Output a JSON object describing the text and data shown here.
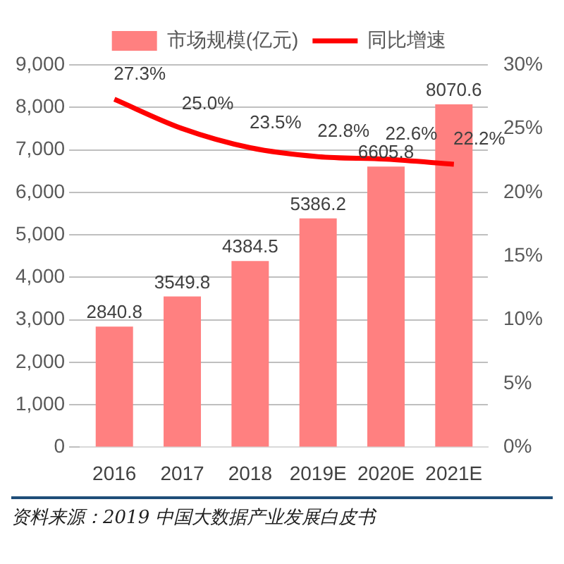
{
  "chart_data": {
    "type": "bar",
    "categories": [
      "2016",
      "2017",
      "2018",
      "2019E",
      "2020E",
      "2021E"
    ],
    "series": [
      {
        "name": "市场规模(亿元)",
        "color": "#ff8080",
        "values": [
          2840.8,
          3549.8,
          4384.5,
          5386.2,
          6605.8,
          8070.6
        ],
        "value_labels": [
          "2840.8",
          "3549.8",
          "4384.5",
          "5386.2",
          "6605.8",
          "8070.6"
        ]
      },
      {
        "name": "同比增速",
        "type": "line",
        "axis": "y2",
        "color": "#ff0000",
        "values": [
          27.3,
          25.0,
          23.5,
          22.8,
          22.6,
          22.2
        ],
        "value_labels": [
          "27.3%",
          "25.0%",
          "23.5%",
          "22.8%",
          "22.6%",
          "22.2%"
        ]
      }
    ],
    "ylim": [
      0,
      9000
    ],
    "yticks": [
      {
        "value": 0,
        "label": "0"
      },
      {
        "value": 1000,
        "label": "1,000"
      },
      {
        "value": 2000,
        "label": "2,000"
      },
      {
        "value": 3000,
        "label": "3,000"
      },
      {
        "value": 4000,
        "label": "4,000"
      },
      {
        "value": 5000,
        "label": "5,000"
      },
      {
        "value": 6000,
        "label": "6,000"
      },
      {
        "value": 7000,
        "label": "7,000"
      },
      {
        "value": 8000,
        "label": "8,000"
      },
      {
        "value": 9000,
        "label": "9,000"
      }
    ],
    "y2lim": [
      0,
      30
    ],
    "y2ticks": [
      {
        "value": 0,
        "label": "0%"
      },
      {
        "value": 5,
        "label": "5%"
      },
      {
        "value": 10,
        "label": "10%"
      },
      {
        "value": 15,
        "label": "15%"
      },
      {
        "value": 20,
        "label": "20%"
      },
      {
        "value": 25,
        "label": "25%"
      },
      {
        "value": 30,
        "label": "30%"
      }
    ],
    "grid": "y",
    "legend": "top",
    "marker": "none",
    "annotations": [
      "资料来源：2019 中国大数据产业发展白皮书"
    ]
  }
}
